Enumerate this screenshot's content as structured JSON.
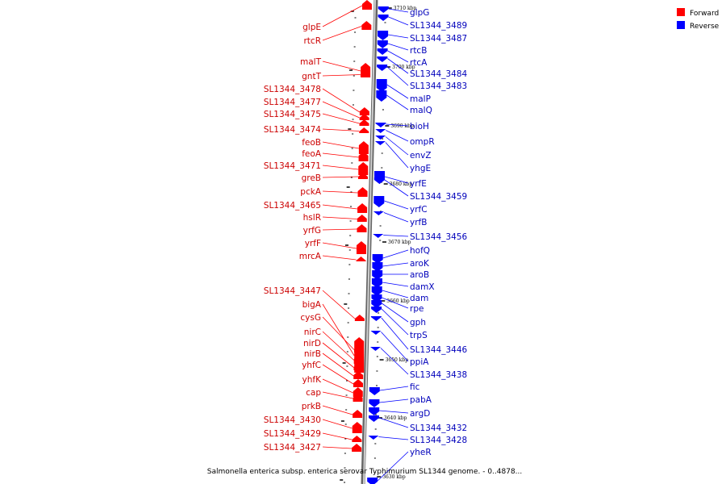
{
  "colors": {
    "forward": "#ff0000",
    "reverse": "#0000ff",
    "axis": "#9a9a9a",
    "forward_label": "#cc0000",
    "reverse_label": "#0000bb"
  },
  "legend": [
    {
      "name": "Forward",
      "color": "#ff0000"
    },
    {
      "name": "Reverse",
      "color": "#0000ff"
    }
  ],
  "caption": "Salmonella enterica subsp. enterica serovar Typhimurium SL1344 genome. - 0..4878...",
  "ticks": [
    "3710 kbp",
    "3700 kbp",
    "3690 kbp",
    "3680 kbp",
    "3670 kbp",
    "3660 kbp",
    "3650 kbp",
    "3640 kbp",
    "3630 kbp"
  ],
  "forward_genes": [
    "glpE",
    "rtcR",
    "malT",
    "gntT",
    "SL1344_3478",
    "SL1344_3477",
    "SL1344_3475",
    "SL1344_3474",
    "feoB",
    "feoA",
    "SL1344_3471",
    "greB",
    "pckA",
    "SL1344_3465",
    "hslR",
    "yrfG",
    "yrfF",
    "mrcA",
    "SL1344_3447",
    "bigA",
    "cysG",
    "nirC",
    "nirD",
    "nirB",
    "yhfC",
    "yhfK",
    "cap",
    "prkB",
    "SL1344_3430",
    "SL1344_3429",
    "SL1344_3427"
  ],
  "reverse_genes": [
    "glpG",
    "SL1344_3489",
    "SL1344_3487",
    "rtcB",
    "rtcA",
    "SL1344_3484",
    "SL1344_3483",
    "malP",
    "malQ",
    "bioH",
    "ompR",
    "envZ",
    "yhgE",
    "yrfE",
    "SL1344_3459",
    "yrfC",
    "yrfB",
    "SL1344_3456",
    "hofQ",
    "aroK",
    "aroB",
    "damX",
    "dam",
    "rpe",
    "gph",
    "trpS",
    "SL1344_3446",
    "ppiA",
    "SL1344_3438",
    "fic",
    "pabA",
    "argD",
    "SL1344_3432",
    "SL1344_3428",
    "yheR"
  ]
}
